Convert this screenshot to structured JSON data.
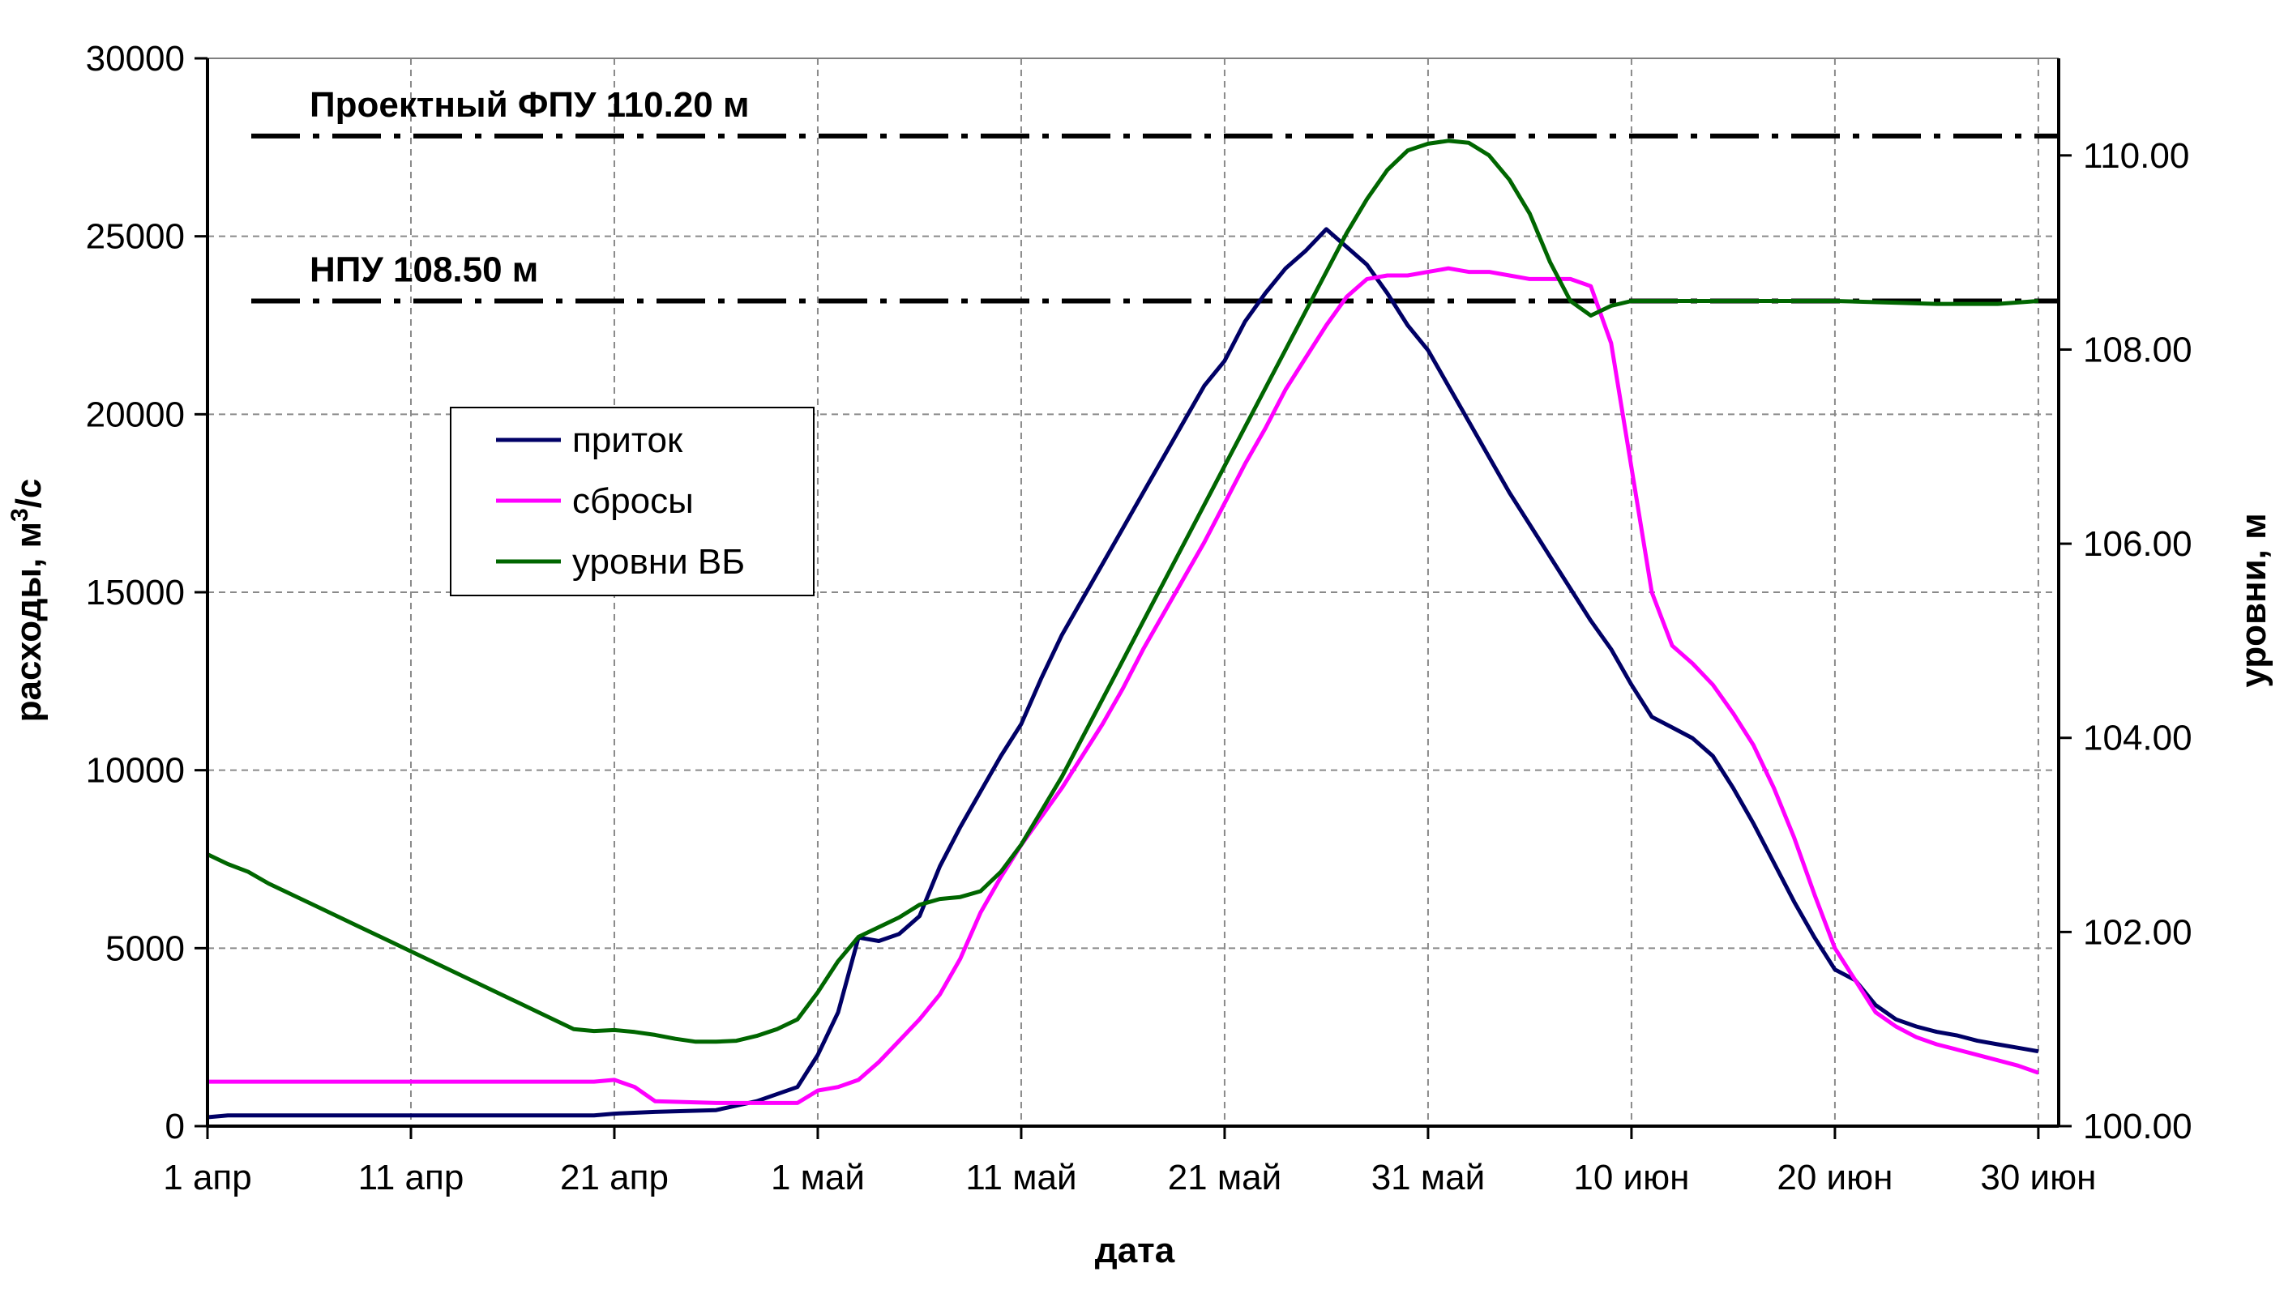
{
  "chart_data": {
    "type": "line",
    "xlabel": "дата",
    "ylabel": "расходы, м³/с",
    "ylabel_parts": [
      "расходы, м",
      "3",
      "/с"
    ],
    "y2label": "уровни, м",
    "x_tick_labels": [
      "1 апр",
      "11 апр",
      "21 апр",
      "1 май",
      "11 май",
      "21 май",
      "31 май",
      "10 июн",
      "20 июн",
      "30 июн"
    ],
    "x_tick_days": [
      0,
      10,
      20,
      30,
      40,
      50,
      60,
      70,
      80,
      90
    ],
    "xlim": [
      0,
      91
    ],
    "ylim": [
      0,
      30000
    ],
    "y_ticks": [
      0,
      5000,
      10000,
      15000,
      20000,
      25000,
      30000
    ],
    "y_tick_labels": [
      "0",
      "5000",
      "10000",
      "15000",
      "20000",
      "25000",
      "30000"
    ],
    "y2lim": [
      100.0,
      111.0
    ],
    "y2_ticks": [
      100,
      102,
      104,
      106,
      108,
      110
    ],
    "y2_tick_labels": [
      "100.00",
      "102.00",
      "104.00",
      "106.00",
      "108.00",
      "110.00"
    ],
    "grid": true,
    "legend_position": "upper-left",
    "reference_lines": [
      {
        "label": "Проектный ФПУ 110.20 м",
        "level": 110.2
      },
      {
        "label": "НПУ 108.50 м",
        "level": 108.5
      }
    ],
    "series": [
      {
        "name": "приток",
        "axis": "left",
        "color": "#000066",
        "x": [
          0,
          1,
          5,
          10,
          15,
          19,
          20,
          22,
          25,
          27,
          29,
          30,
          31,
          32,
          33,
          34,
          35,
          36,
          37,
          38,
          39,
          40,
          41,
          42,
          43,
          44,
          45,
          46,
          47,
          48,
          49,
          50,
          51,
          52,
          53,
          54,
          55,
          56,
          57,
          58,
          59,
          60,
          61,
          62,
          63,
          64,
          65,
          66,
          67,
          68,
          69,
          70,
          71,
          72,
          73,
          74,
          75,
          76,
          77,
          78,
          79,
          80,
          81,
          82,
          83,
          84,
          85,
          86,
          87,
          88,
          89,
          90
        ],
        "y": [
          250,
          300,
          300,
          300,
          300,
          300,
          350,
          400,
          450,
          700,
          1100,
          2000,
          3200,
          5300,
          5200,
          5400,
          5900,
          7300,
          8400,
          9400,
          10400,
          11300,
          12600,
          13800,
          14800,
          15800,
          16800,
          17800,
          18800,
          19800,
          20800,
          21500,
          22600,
          23400,
          24100,
          24600,
          25200,
          24700,
          24200,
          23400,
          22500,
          21800,
          20800,
          19800,
          18800,
          17800,
          16900,
          16000,
          15100,
          14200,
          13400,
          12400,
          11500,
          11200,
          10900,
          10400,
          9500,
          8500,
          7400,
          6300,
          5300,
          4400,
          4100,
          3400,
          3000,
          2800,
          2650,
          2550,
          2400,
          2300,
          2200,
          2100
        ]
      },
      {
        "name": "сбросы",
        "axis": "left",
        "color": "#FF00FF",
        "x": [
          0,
          5,
          10,
          15,
          19,
          20,
          21,
          22,
          25,
          27,
          29,
          30,
          31,
          32,
          33,
          34,
          35,
          36,
          37,
          38,
          39,
          40,
          41,
          42,
          43,
          44,
          45,
          46,
          47,
          48,
          49,
          50,
          51,
          52,
          53,
          54,
          55,
          56,
          57,
          58,
          59,
          60,
          61,
          62,
          63,
          64,
          65,
          66,
          67,
          68,
          69,
          70,
          71,
          72,
          73,
          74,
          75,
          76,
          77,
          78,
          79,
          80,
          81,
          82,
          83,
          84,
          85,
          86,
          87,
          88,
          89,
          90
        ],
        "y": [
          1250,
          1250,
          1250,
          1250,
          1250,
          1300,
          1100,
          700,
          650,
          650,
          650,
          1000,
          1100,
          1300,
          1800,
          2400,
          3000,
          3700,
          4700,
          6000,
          7000,
          7900,
          8700,
          9500,
          10400,
          11300,
          12300,
          13400,
          14400,
          15400,
          16400,
          17500,
          18600,
          19600,
          20700,
          21600,
          22500,
          23300,
          23800,
          23900,
          23900,
          24000,
          24100,
          24000,
          24000,
          23900,
          23800,
          23800,
          23800,
          23600,
          22000,
          18500,
          15000,
          13500,
          13000,
          12400,
          11600,
          10700,
          9500,
          8100,
          6500,
          5000,
          4100,
          3200,
          2800,
          2500,
          2300,
          2150,
          2000,
          1850,
          1700,
          1500
        ]
      },
      {
        "name": "уровни ВБ",
        "axis": "right",
        "color": "#006600",
        "x": [
          0,
          1,
          2,
          3,
          5,
          7,
          9,
          11,
          13,
          15,
          17,
          18,
          19,
          20,
          21,
          22,
          23,
          24,
          25,
          26,
          27,
          28,
          29,
          30,
          31,
          32,
          33,
          34,
          35,
          36,
          37,
          38,
          39,
          40,
          41,
          42,
          43,
          44,
          45,
          46,
          47,
          48,
          49,
          50,
          51,
          52,
          53,
          54,
          55,
          56,
          57,
          58,
          59,
          60,
          61,
          62,
          63,
          64,
          65,
          66,
          67,
          68,
          69,
          70,
          75,
          80,
          85,
          88,
          90
        ],
        "y": [
          102.8,
          102.7,
          102.62,
          102.5,
          102.3,
          102.1,
          101.9,
          101.7,
          101.5,
          101.3,
          101.1,
          101.0,
          100.98,
          100.99,
          100.97,
          100.94,
          100.9,
          100.87,
          100.87,
          100.88,
          100.93,
          101.0,
          101.1,
          101.38,
          101.7,
          101.95,
          102.05,
          102.15,
          102.28,
          102.34,
          102.36,
          102.42,
          102.62,
          102.9,
          103.25,
          103.6,
          104.0,
          104.4,
          104.8,
          105.2,
          105.6,
          106.0,
          106.4,
          106.8,
          107.2,
          107.6,
          108.0,
          108.4,
          108.8,
          109.2,
          109.55,
          109.85,
          110.05,
          110.12,
          110.15,
          110.13,
          110.0,
          109.75,
          109.4,
          108.9,
          108.5,
          108.35,
          108.45,
          108.5,
          108.5,
          108.5,
          108.47,
          108.47,
          108.5
        ]
      }
    ]
  }
}
